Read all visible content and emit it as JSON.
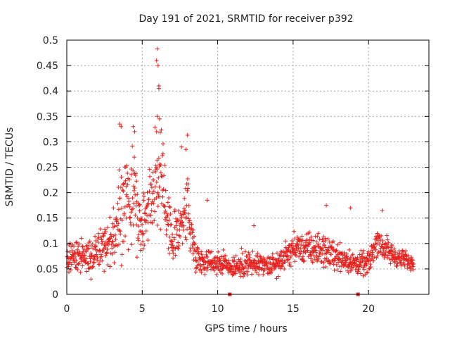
{
  "chart_data": {
    "type": "scatter",
    "title": "Day 191 of 2021, SRMTID for receiver p392",
    "xlabel": "GPS time / hours",
    "ylabel": "SRMTID / TECUs",
    "xlim": [
      0,
      24
    ],
    "ylim": [
      0,
      0.5
    ],
    "grid": true,
    "x_ticks": [
      0,
      5,
      10,
      15,
      20
    ],
    "x_tick_labels": [
      "0",
      "5",
      "10",
      "15",
      "20"
    ],
    "y_ticks": [
      0,
      0.05,
      0.1,
      0.15,
      0.2,
      0.25,
      0.3,
      0.35,
      0.4,
      0.45,
      0.5
    ],
    "y_tick_labels": [
      "0",
      "0.05",
      "0.1",
      "0.15",
      "0.2",
      "0.25",
      "0.3",
      "0.35",
      "0.4",
      "0.45",
      "0.5"
    ],
    "marker": "plus",
    "marker_color": "#e8221f",
    "series": [
      {
        "name": "SRMTID",
        "profile": [
          {
            "x": 0.0,
            "base": 0.07,
            "spread": 0.03
          },
          {
            "x": 1.0,
            "base": 0.075,
            "spread": 0.04
          },
          {
            "x": 2.0,
            "base": 0.09,
            "spread": 0.04
          },
          {
            "x": 3.0,
            "base": 0.1,
            "spread": 0.05
          },
          {
            "x": 3.5,
            "base": 0.16,
            "spread": 0.09
          },
          {
            "x": 4.0,
            "base": 0.18,
            "spread": 0.1
          },
          {
            "x": 4.5,
            "base": 0.21,
            "spread": 0.11
          },
          {
            "x": 5.0,
            "base": 0.13,
            "spread": 0.06
          },
          {
            "x": 5.5,
            "base": 0.19,
            "spread": 0.08
          },
          {
            "x": 6.0,
            "base": 0.24,
            "spread": 0.12
          },
          {
            "x": 6.5,
            "base": 0.18,
            "spread": 0.09
          },
          {
            "x": 7.0,
            "base": 0.1,
            "spread": 0.04
          },
          {
            "x": 7.5,
            "base": 0.14,
            "spread": 0.07
          },
          {
            "x": 8.0,
            "base": 0.17,
            "spread": 0.09
          },
          {
            "x": 8.5,
            "base": 0.08,
            "spread": 0.03
          },
          {
            "x": 9.0,
            "base": 0.065,
            "spread": 0.025
          },
          {
            "x": 10.0,
            "base": 0.065,
            "spread": 0.025
          },
          {
            "x": 11.0,
            "base": 0.055,
            "spread": 0.025
          },
          {
            "x": 12.0,
            "base": 0.06,
            "spread": 0.03
          },
          {
            "x": 13.0,
            "base": 0.055,
            "spread": 0.025
          },
          {
            "x": 14.0,
            "base": 0.06,
            "spread": 0.025
          },
          {
            "x": 15.0,
            "base": 0.09,
            "spread": 0.03
          },
          {
            "x": 16.0,
            "base": 0.09,
            "spread": 0.035
          },
          {
            "x": 17.0,
            "base": 0.085,
            "spread": 0.035
          },
          {
            "x": 18.0,
            "base": 0.075,
            "spread": 0.03
          },
          {
            "x": 19.0,
            "base": 0.06,
            "spread": 0.025
          },
          {
            "x": 20.0,
            "base": 0.06,
            "spread": 0.025
          },
          {
            "x": 20.6,
            "base": 0.11,
            "spread": 0.035
          },
          {
            "x": 21.0,
            "base": 0.09,
            "spread": 0.03
          },
          {
            "x": 22.0,
            "base": 0.07,
            "spread": 0.02
          },
          {
            "x": 22.8,
            "base": 0.065,
            "spread": 0.02
          }
        ],
        "highlights": [
          {
            "x": 6.0,
            "y": 0.483
          },
          {
            "x": 5.95,
            "y": 0.46
          },
          {
            "x": 6.05,
            "y": 0.45
          },
          {
            "x": 6.1,
            "y": 0.41
          },
          {
            "x": 6.1,
            "y": 0.405
          },
          {
            "x": 6.0,
            "y": 0.35
          },
          {
            "x": 6.15,
            "y": 0.345
          },
          {
            "x": 3.5,
            "y": 0.335
          },
          {
            "x": 3.6,
            "y": 0.33
          },
          {
            "x": 4.4,
            "y": 0.33
          },
          {
            "x": 4.5,
            "y": 0.32
          },
          {
            "x": 5.95,
            "y": 0.32
          },
          {
            "x": 8.0,
            "y": 0.313
          },
          {
            "x": 7.6,
            "y": 0.29
          },
          {
            "x": 7.9,
            "y": 0.285
          },
          {
            "x": 9.3,
            "y": 0.185
          },
          {
            "x": 18.8,
            "y": 0.17
          },
          {
            "x": 17.2,
            "y": 0.175
          },
          {
            "x": 20.9,
            "y": 0.165
          },
          {
            "x": 12.4,
            "y": 0.135
          },
          {
            "x": 1.6,
            "y": 0.03
          }
        ],
        "zero_points": [
          {
            "x": 10.8,
            "y": 0.0
          },
          {
            "x": 19.3,
            "y": 0.0
          }
        ],
        "x_range": [
          0,
          23
        ],
        "samples_per_hour": 60,
        "seed": 191
      }
    ]
  }
}
